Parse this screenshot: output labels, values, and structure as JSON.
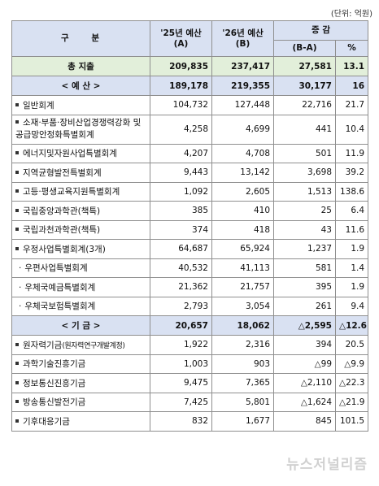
{
  "unit": "(단위: 억원)",
  "header": {
    "gubun": "구 분",
    "y25_line1": "'25년 예산",
    "y25_line2": "(A)",
    "y26_line1": "'26년 예산",
    "y26_line2": "(B)",
    "change": "증 감",
    "diff": "(B-A)",
    "pct": "%"
  },
  "total": {
    "name": "총 지출",
    "a": "209,835",
    "b": "237,417",
    "d": "27,581",
    "p": "13.1"
  },
  "budget_section": {
    "name": "< 예 산 >",
    "a": "189,178",
    "b": "219,355",
    "d": "30,177",
    "p": "16"
  },
  "budget_items": [
    {
      "name": "일반회계",
      "a": "104,732",
      "b": "127,448",
      "d": "22,716",
      "p": "21.7"
    },
    {
      "name": "소재·부품·장비산업경쟁력강화 및 공급망안정화특별회계",
      "a": "4,258",
      "b": "4,699",
      "d": "441",
      "p": "10.4"
    },
    {
      "name": "에너지및자원사업특별회계",
      "a": "4,207",
      "b": "4,708",
      "d": "501",
      "p": "11.9"
    },
    {
      "name": "지역균형발전특별회계",
      "a": "9,443",
      "b": "13,142",
      "d": "3,698",
      "p": "39.2"
    },
    {
      "name": "고등·평생교육지원특별회계",
      "a": "1,092",
      "b": "2,605",
      "d": "1,513",
      "p": "138.6"
    },
    {
      "name": "국립중앙과학관(책특)",
      "a": "385",
      "b": "410",
      "d": "25",
      "p": "6.4"
    },
    {
      "name": "국립과천과학관(책특)",
      "a": "374",
      "b": "418",
      "d": "43",
      "p": "11.6"
    },
    {
      "name": "우정사업특별회계(3개)",
      "a": "64,687",
      "b": "65,924",
      "d": "1,237",
      "p": "1.9"
    }
  ],
  "postal_sub_items": [
    {
      "name": "우편사업특별회계",
      "a": "40,532",
      "b": "41,113",
      "d": "581",
      "p": "1.4"
    },
    {
      "name": "우체국예금특별회계",
      "a": "21,362",
      "b": "21,757",
      "d": "395",
      "p": "1.9"
    },
    {
      "name": "우체국보험특별회계",
      "a": "2,793",
      "b": "3,054",
      "d": "261",
      "p": "9.4"
    }
  ],
  "fund_section": {
    "name": "< 기 금 >",
    "a": "20,657",
    "b": "18,062",
    "d": "△2,595",
    "p": "△12.6"
  },
  "fund_items": [
    {
      "name": "원자력기금",
      "note": "(원자력연구개발계정)",
      "a": "1,922",
      "b": "2,316",
      "d": "394",
      "p": "20.5"
    },
    {
      "name": "과학기술진흥기금",
      "a": "1,003",
      "b": "903",
      "d": "△99",
      "p": "△9.9"
    },
    {
      "name": "정보통신진흥기금",
      "a": "9,475",
      "b": "7,365",
      "d": "△2,110",
      "p": "△22.3"
    },
    {
      "name": "방송통신발전기금",
      "a": "7,425",
      "b": "5,801",
      "d": "△1,624",
      "p": "△21.9"
    },
    {
      "name": "기후대응기금",
      "a": "832",
      "b": "1,677",
      "d": "845",
      "p": "101.5"
    }
  ],
  "watermark": "뉴스저널리즘"
}
